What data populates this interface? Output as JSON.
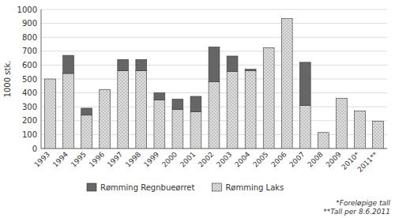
{
  "chart_data": {
    "type": "bar",
    "stacked": true,
    "categories": [
      "1993",
      "1994",
      "1995",
      "1996",
      "1997",
      "1998",
      "1999",
      "2000",
      "2001",
      "2002",
      "2003",
      "2004",
      "2005",
      "2006",
      "2007",
      "2008",
      "2009",
      "2010*",
      "2011**"
    ],
    "series": [
      {
        "name": "Rømming Laks",
        "color": "#e0e0e0",
        "values": [
          500,
          540,
          240,
          425,
          560,
          560,
          350,
          280,
          265,
          480,
          555,
          560,
          725,
          935,
          310,
          115,
          360,
          270,
          195
        ]
      },
      {
        "name": "Rømming Regnbueørret",
        "color": "#666666",
        "values": [
          0,
          130,
          50,
          0,
          80,
          80,
          50,
          75,
          110,
          250,
          110,
          10,
          0,
          0,
          310,
          0,
          0,
          0,
          0
        ]
      }
    ],
    "ylabel": "1000 stk.",
    "ylim": [
      0,
      1000
    ],
    "yticks": [
      0,
      100,
      200,
      300,
      400,
      500,
      600,
      700,
      800,
      900,
      1000
    ],
    "grid": true,
    "legend": "bottom",
    "annotations": [
      "*Foreløpige tall",
      "**Tall per 8.6.2011"
    ]
  }
}
